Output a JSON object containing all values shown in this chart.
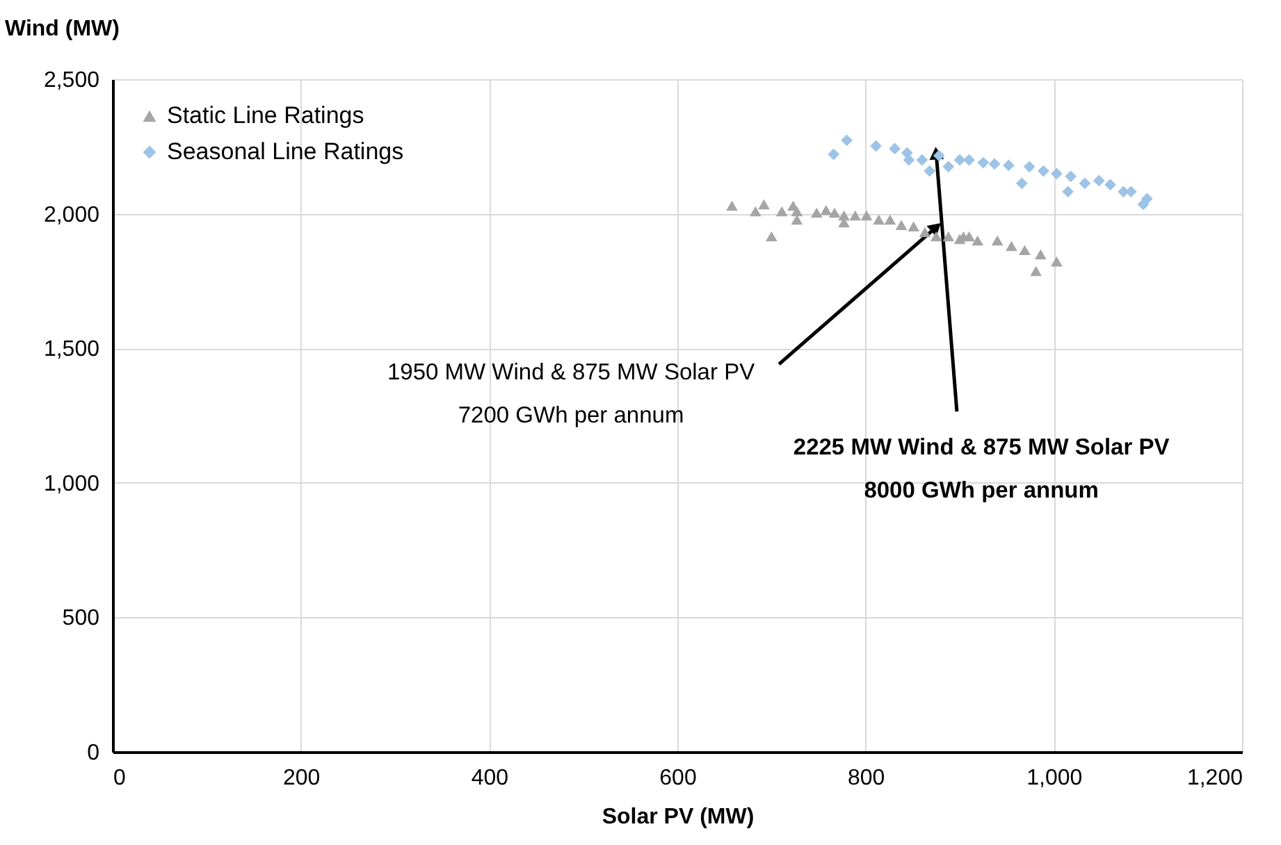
{
  "chart_data": {
    "type": "scatter",
    "xlabel": "Solar PV (MW)",
    "ylabel": "Wind (MW)",
    "xlim": [
      0,
      1200
    ],
    "ylim": [
      0,
      2500
    ],
    "xticks": [
      0,
      200,
      400,
      600,
      800,
      {
        "value": 1000,
        "label": "1,000"
      },
      {
        "value": 1200,
        "label": "1,200"
      }
    ],
    "yticks": [
      0,
      500,
      {
        "value": 1000,
        "label": "1,000"
      },
      {
        "value": 1500,
        "label": "1,500"
      },
      {
        "value": 2000,
        "label": "2,000"
      },
      {
        "value": 2500,
        "label": "2,500"
      }
    ],
    "grid": true,
    "legend": "top left",
    "series": [
      {
        "name": "Static Line Ratings",
        "color": "#a5a5a5",
        "marker": "triangle",
        "x": [
          658,
          683,
          692,
          700,
          711,
          723,
          727,
          727,
          748,
          758,
          767,
          777,
          777,
          789,
          801,
          814,
          826,
          838,
          851,
          863,
          875,
          888,
          900,
          904,
          910,
          919,
          940,
          955,
          969,
          981,
          986,
          1003
        ],
        "values": [
          2030,
          2009,
          2035,
          1916,
          2009,
          2030,
          2009,
          1978,
          2004,
          2014,
          2004,
          1994,
          1968,
          1994,
          1994,
          1978,
          1978,
          1958,
          1953,
          1932,
          1916,
          1916,
          1906,
          1916,
          1916,
          1901,
          1901,
          1880,
          1865,
          1787,
          1849,
          1823
        ]
      },
      {
        "name": "Seasonal Line Ratings",
        "color": "#9dc3e6",
        "marker": "diamond",
        "x": [
          766,
          780,
          811,
          831,
          844,
          846,
          860,
          868,
          878,
          888,
          900,
          910,
          925,
          937,
          952,
          966,
          974,
          989,
          1003,
          1015,
          1018,
          1033,
          1048,
          1060,
          1074,
          1082,
          1095,
          1099
        ],
        "values": [
          2221,
          2273,
          2252,
          2242,
          2226,
          2200,
          2200,
          2159,
          2216,
          2175,
          2200,
          2200,
          2190,
          2185,
          2180,
          2113,
          2175,
          2159,
          2149,
          2082,
          2139,
          2113,
          2123,
          2108,
          2082,
          2082,
          2035,
          2056
        ]
      }
    ],
    "annotations": [
      {
        "text": "1950 MW Wind & 875 MW Solar PV\n7200 GWh per annum",
        "x": 875,
        "y": 1950
      },
      {
        "text": "2225 MW Wind & 875 MW Solar PV\n8000 GWh per annum",
        "x": 875,
        "y": 2225
      }
    ]
  }
}
